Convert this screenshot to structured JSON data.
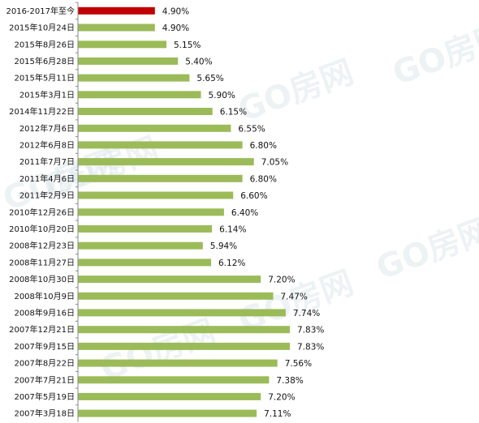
{
  "chart_data": {
    "type": "bar",
    "orientation": "horizontal",
    "categories": [
      "2016-2017年至今",
      "2015年10月24日",
      "2015年8月26日",
      "2015年6月28日",
      "2015年5月11日",
      "2015年3月1日",
      "2014年11月22日",
      "2012年7月6日",
      "2012年6月8日",
      "2011年7月7日",
      "2011年4月6日",
      "2011年2月9日",
      "2010年12月26日",
      "2010年10月20日",
      "2008年12月23日",
      "2008年11月27日",
      "2008年10月30日",
      "2008年10月9日",
      "2008年9月16日",
      "2007年12月21日",
      "2007年9月15日",
      "2007年8月22日",
      "2007年7月21日",
      "2007年5月19日",
      "2007年3月18日"
    ],
    "values": [
      4.9,
      4.9,
      5.15,
      5.4,
      5.65,
      5.9,
      6.15,
      6.55,
      6.8,
      7.05,
      6.8,
      6.6,
      6.4,
      6.14,
      5.94,
      6.12,
      7.2,
      7.47,
      7.74,
      7.83,
      7.83,
      7.56,
      7.38,
      7.2,
      7.11
    ],
    "value_labels": [
      "4.90%",
      "4.90%",
      "5.15%",
      "5.40%",
      "5.65%",
      "5.90%",
      "6.15%",
      "6.55%",
      "6.80%",
      "7.05%",
      "6.80%",
      "6.60%",
      "6.40%",
      "6.14%",
      "5.94%",
      "6.12%",
      "7.20%",
      "7.47%",
      "7.74%",
      "7.83%",
      "7.83%",
      "7.56%",
      "7.38%",
      "7.20%",
      "7.11%"
    ],
    "unit": "%",
    "highlight_index": 0,
    "colors": {
      "bar": "#9bbb59",
      "highlight": "#c00000",
      "axis": "#888888"
    },
    "watermark": "GO房网"
  }
}
